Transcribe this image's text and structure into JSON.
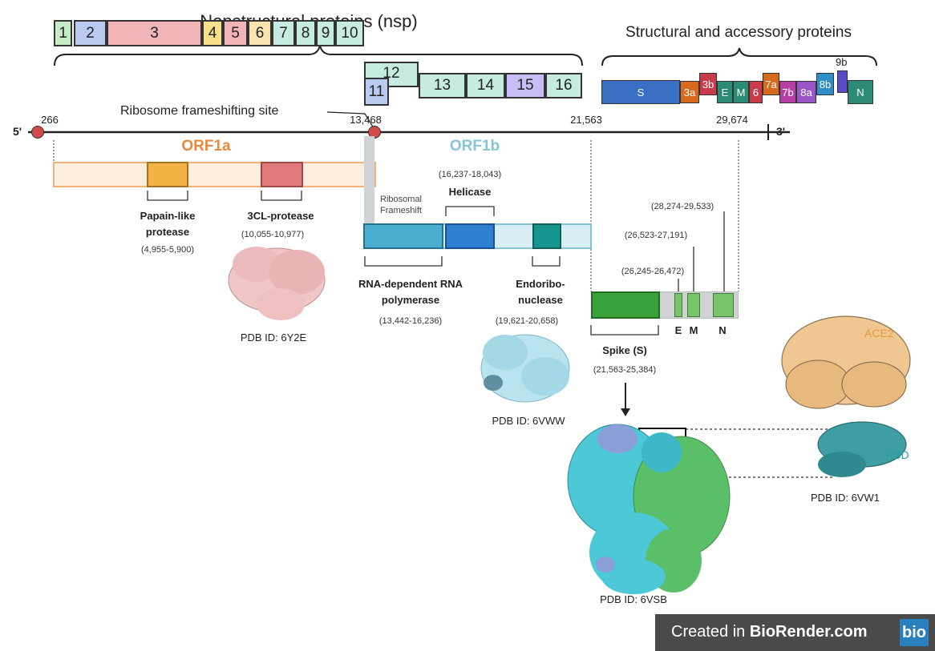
{
  "titles": {
    "nsp": "Nonstructural proteins (nsp)",
    "structural": "Structural and accessory proteins"
  },
  "nsp_boxes": [
    {
      "label": "1",
      "color": "#c7ecc4"
    },
    {
      "label": "2",
      "color": "#b9cbf0"
    },
    {
      "label": "3",
      "color": "#f1b5b8"
    },
    {
      "label": "4",
      "color": "#f6e08a"
    },
    {
      "label": "5",
      "color": "#f1b5b8"
    },
    {
      "label": "6",
      "color": "#f8e4b0"
    },
    {
      "label": "7",
      "color": "#c6ece2"
    },
    {
      "label": "8",
      "color": "#c6ece2"
    },
    {
      "label": "9",
      "color": "#c6ece2"
    },
    {
      "label": "10",
      "color": "#c6ece2"
    },
    {
      "label": "11",
      "color": "#b9cbf0"
    },
    {
      "label": "12",
      "color": "#c6ece2"
    },
    {
      "label": "13",
      "color": "#c6ece2"
    },
    {
      "label": "14",
      "color": "#c6ece2"
    },
    {
      "label": "15",
      "color": "#c8bdf6"
    },
    {
      "label": "16",
      "color": "#c6ece2"
    }
  ],
  "structural_boxes": [
    {
      "label": "S",
      "color": "#3a70c3"
    },
    {
      "label": "3a",
      "color": "#d86a1e"
    },
    {
      "label": "3b",
      "color": "#c93a4a"
    },
    {
      "label": "E",
      "color": "#2b8b75"
    },
    {
      "label": "M",
      "color": "#2b8b75"
    },
    {
      "label": "6",
      "color": "#c93a4a"
    },
    {
      "label": "7a",
      "color": "#d86a1e"
    },
    {
      "label": "7b",
      "color": "#b53fa5"
    },
    {
      "label": "8a",
      "color": "#9a55c6"
    },
    {
      "label": "8b",
      "color": "#2f8fc8"
    },
    {
      "label": "9b",
      "color": "#5a4cc8"
    },
    {
      "label": "N",
      "color": "#2b8b75"
    }
  ],
  "genome": {
    "five_prime": "5'",
    "three_prime": "3'",
    "positions": [
      "266",
      "13,468",
      "21,563",
      "29,674"
    ],
    "frameshift_site": "Ribosome frameshifting site"
  },
  "orf1a": {
    "label": "ORF1a",
    "papain": {
      "name": "Papain-like\nprotease",
      "range": "(4,955-5,900)"
    },
    "protease3cl": {
      "name": "3CL-protease",
      "range": "(10,055-10,977)"
    },
    "pdb": "PDB ID: 6Y2E"
  },
  "orf1b": {
    "label": "ORF1b",
    "ribosomal": "Ribosomal\nFrameshift",
    "helicase": {
      "name": "Helicase",
      "range": "(16,237-18,043)"
    },
    "rdrp": {
      "name": "RNA-dependent RNA\npolymerase",
      "range": "(13,442-16,236)"
    },
    "endo": {
      "name": "Endoribo-\nnuclease",
      "range": "(19,621-20,658)"
    },
    "pdb": "PDB ID: 6VWW"
  },
  "structural": {
    "e_range": "(26,245-26,472)",
    "m_range": "(26,523-27,191)",
    "n_range": "(28,274-29,533)",
    "e": "E",
    "m": "M",
    "n": "N",
    "spike": {
      "name": "Spike (S)",
      "range": "(21,563-25,384)"
    },
    "pdb_spike": "PDB ID: 6VSB",
    "ace2": "ACE2",
    "rbd": "RBD",
    "pdb_ace2": "PDB ID: 6VW1"
  },
  "footer": {
    "text_prefix": "Created in ",
    "text_brand": "BioRender.com",
    "logo": "bio"
  },
  "colors": {
    "orf1a_accent": "#e88a3a",
    "orf1b_accent": "#86c5d6",
    "genome_dot": "#d04a4a"
  }
}
